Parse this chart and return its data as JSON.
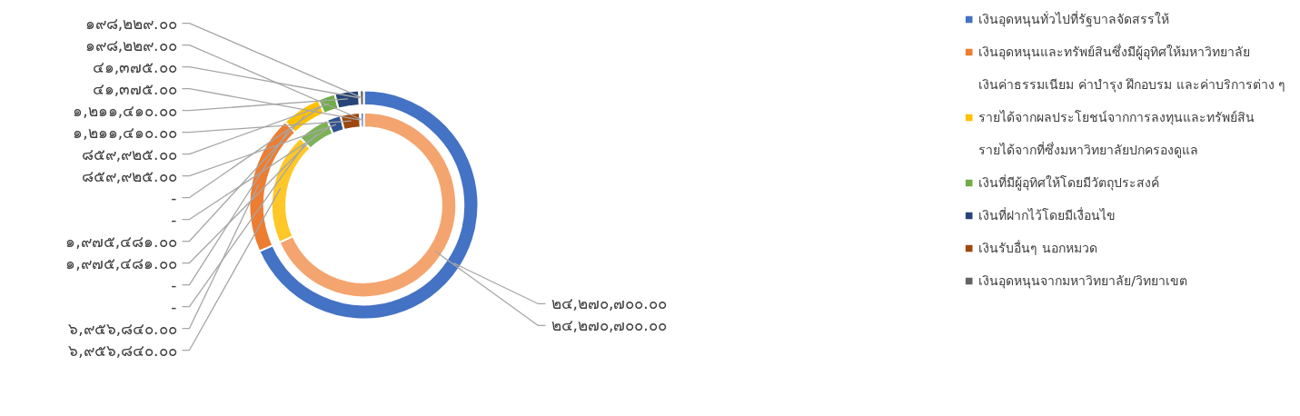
{
  "chart_data": {
    "type": "donut",
    "categories": [
      "เงินอุดหนุนทั่วไปที่รัฐบาลจัดสรรให้",
      "เงินอุดหนุนและทรัพย์สินซึ่งมีผู้อุทิศให้มหาวิทยาลัย",
      "เงินค่าธรรมเนียม ค่าบำรุง ฝึกอบรม และค่าบริการต่าง ๆ",
      "รายได้จากผลประโยชน์จากการลงทุนและทรัพย์สิน",
      "รายได้จากที่ซึ่งมหาวิทยาลัยปกครองดูแล",
      "เงินที่มีผู้อุทิศให้โดยมีวัตถุประสงค์",
      "เงินที่ฝากไว้โดยมีเงื่อนไข",
      "เงินรับอื่นๆ นอกหมวด",
      "เงินอุดหนุนจากมหาวิทยาลัย/วิทยาเขต"
    ],
    "colors": [
      "#4472c4",
      "#ed7d31",
      "#a5a5a5",
      "#ffc000",
      "#5b9bd5",
      "#70ad47",
      "#264478",
      "#9e480e",
      "#636363"
    ],
    "series": [
      {
        "values": [
          24270700,
          6956840,
          0,
          1975481,
          0,
          859925,
          1211410,
          41375,
          198229
        ],
        "value_labels": [
          "๒๔,๒๗๐,๗๐๐.๐๐",
          "๖,๙๕๖,๘๔๐.๐๐",
          "-",
          "๑,๙๗๕,๔๘๑.๐๐",
          "-",
          "๘๕๙,๙๒๕.๐๐",
          "๑,๒๑๑,๔๑๐.๐๐",
          "๔๑,๓๗๕.๐๐",
          "๑๙๘,๒๒๙.๐๐"
        ]
      },
      {
        "values": [
          24270700,
          6956840,
          0,
          1975481,
          0,
          859925,
          1211410,
          41375,
          198229
        ],
        "value_labels": [
          "๒๔,๒๗๐,๗๐๐.๐๐",
          "๖,๙๕๖,๘๔๐.๐๐",
          "-",
          "๑,๙๗๕,๔๘๑.๐๐",
          "-",
          "๘๕๙,๙๒๕.๐๐",
          "๑,๒๑๑,๔๑๐.๐๐",
          "๔๑,๓๗๕.๐๐",
          "๑๙๘,๒๒๙.๐๐"
        ],
        "colors": [
          "#f4a46e",
          "#ffc727",
          "#a5a5a5",
          "#7cb356",
          "#5b9bd5",
          "#2f528f",
          "#9e480e",
          "#7f7f7f",
          "#4472c4"
        ]
      }
    ],
    "legend": "right"
  }
}
